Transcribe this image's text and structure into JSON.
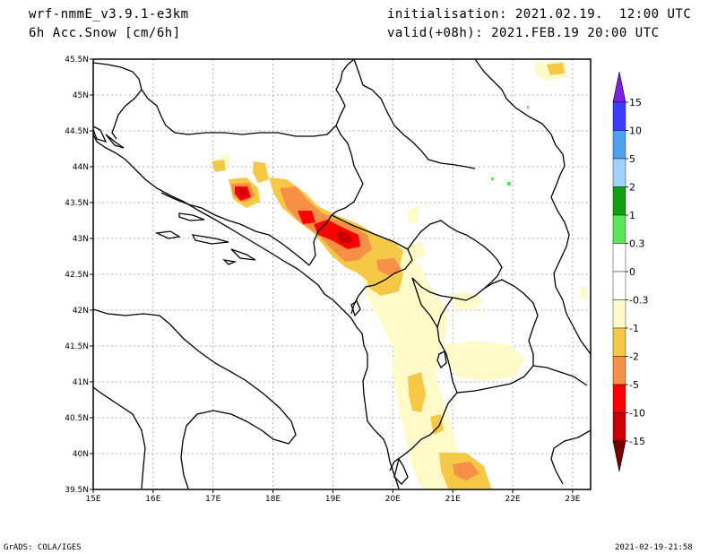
{
  "header": {
    "model": "wrf-nmmE_v3.9.1-e3km",
    "variable": "6h Acc.Snow [cm/6h]",
    "init": "initialisation: 2021.02.19.  12:00 UTC",
    "valid": "valid(+08h): 2021.FEB.19 20:00 UTC"
  },
  "footer": {
    "left": "GrADS: COLA/IGES",
    "right": "2021-02-19-21:58"
  },
  "map": {
    "lon_range": [
      15,
      23.3
    ],
    "lat_range": [
      39.5,
      45.5
    ],
    "lon_ticks": [
      "15E",
      "16E",
      "17E",
      "18E",
      "19E",
      "20E",
      "21E",
      "22E",
      "23E"
    ],
    "lat_ticks": [
      "39.5N",
      "40N",
      "40.5N",
      "41N",
      "41.5N",
      "42N",
      "42.5N",
      "43N",
      "43.5N",
      "44N",
      "44.5N",
      "45N",
      "45.5N"
    ],
    "grid": true
  },
  "colorbar": {
    "labels": [
      "15",
      "10",
      "5",
      "2",
      "1",
      "0.3",
      "0",
      "-0.3",
      "-1",
      "-2",
      "-5",
      "-10",
      "-15"
    ],
    "colors": [
      "#7e1ee6",
      "#3c3cff",
      "#50a0f0",
      "#a0d2ff",
      "#10a010",
      "#5ae65a",
      "#ffffff",
      "#ffffff",
      "#fffac8",
      "#f5c846",
      "#f59046",
      "#ff0000",
      "#c80000",
      "#780000"
    ]
  },
  "snow_colors": {
    "light": "#fffac8",
    "moderate": "#f5c846",
    "heavy": "#f59046",
    "intense": "#ff0000",
    "extreme": "#c80000",
    "green": "#5ae65a"
  }
}
